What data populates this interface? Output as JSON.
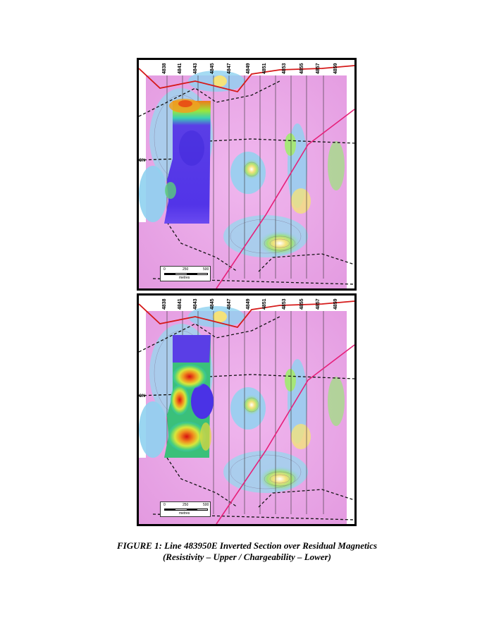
{
  "figure": {
    "caption_title": "FIGURE 1: Line 483950E Inverted Section over Residual Magnetics",
    "caption_subtitle": "(Resistivity – Upper / Chargeability – Lower)"
  },
  "maps": [
    {
      "id": "upper",
      "section_property": "Resistivity",
      "tick_labels": [
        "4838",
        "4841",
        "4843",
        "4845",
        "4847",
        "4849",
        "4851",
        "4853",
        "4855",
        "4857",
        "4859"
      ],
      "side_label": "ON",
      "scale_bar": {
        "zero": "0",
        "mid": "250",
        "max": "500",
        "unit": "metres"
      },
      "colors": {
        "magnetic_low": "#e9a9e6",
        "magnetic_mid": "#8fd2f0",
        "magnetic_high": "#f7e66a",
        "section_low": "#4a2ee6",
        "section_high": "#e83a12",
        "fault": "#e6207a",
        "road": "#d51a1a"
      }
    },
    {
      "id": "lower",
      "section_property": "Chargeability",
      "tick_labels": [
        "4838",
        "4841",
        "4843",
        "4845",
        "4847",
        "4849",
        "4851",
        "4853",
        "4855",
        "4857",
        "4859"
      ],
      "side_label": "ON",
      "scale_bar": {
        "zero": "0",
        "mid": "250",
        "max": "500",
        "unit": "metres"
      },
      "colors": {
        "magnetic_low": "#e9a9e6",
        "magnetic_mid": "#8fd2f0",
        "magnetic_high": "#f7e66a",
        "section_low": "#4a2ee6",
        "section_high": "#e83a12",
        "fault": "#e6207a",
        "road": "#d51a1a"
      }
    }
  ]
}
